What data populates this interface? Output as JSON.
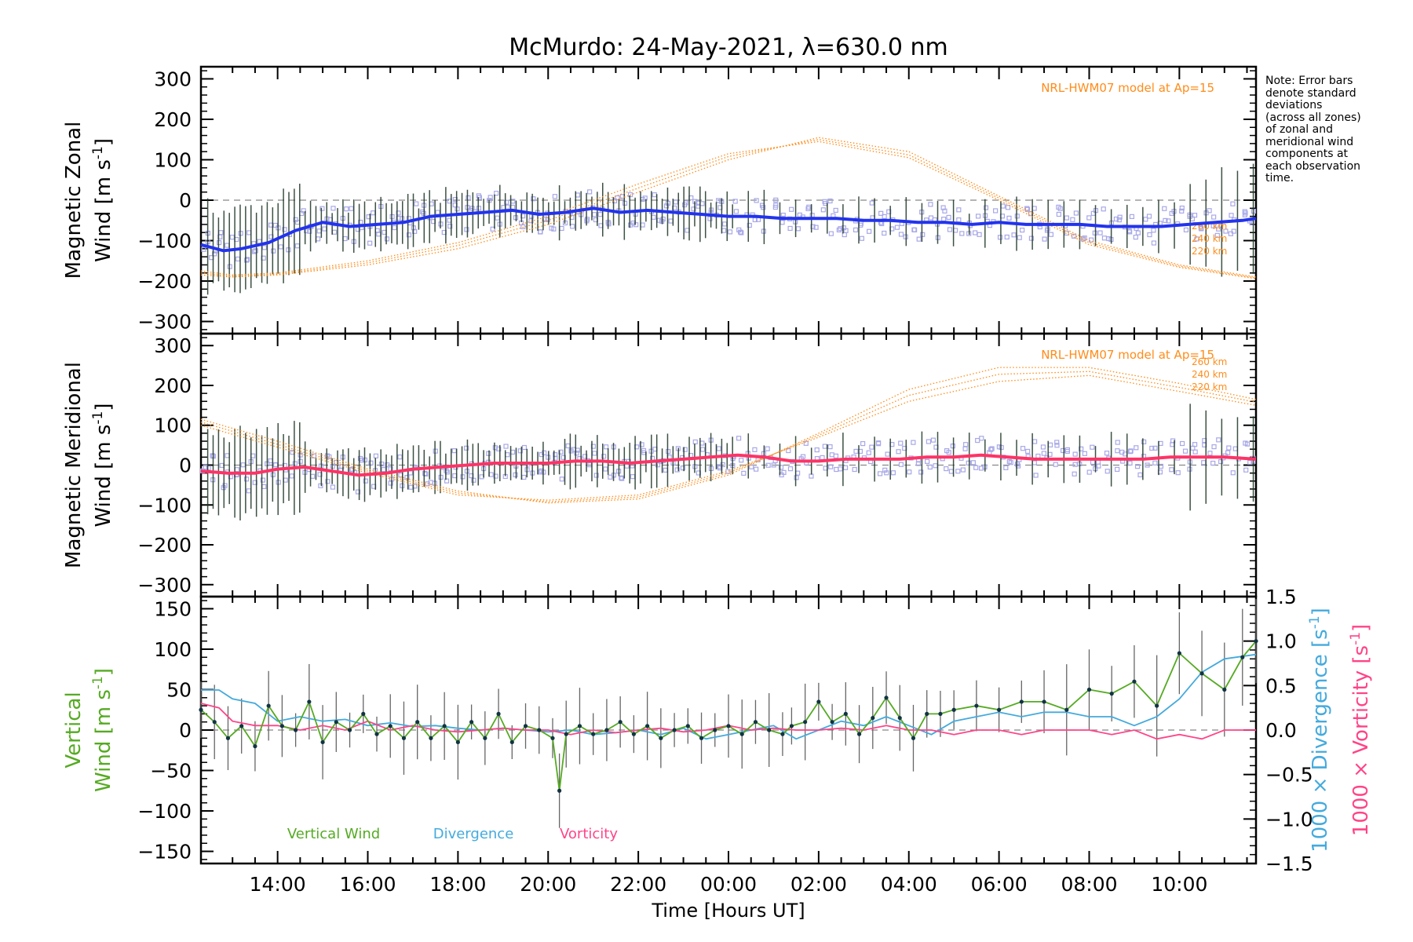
{
  "chart_data": {
    "type": "line",
    "title": "McMurdo: 24-May-2021, λ=630.0 nm",
    "xlabel": "Time [Hours UT]",
    "x_unit": "hours since 00:00 UT on 24-May-2021",
    "xlim": [
      12.3,
      35.7
    ],
    "x_ticks": [
      14,
      16,
      18,
      20,
      22,
      24,
      26,
      28,
      30,
      32,
      34
    ],
    "x_tick_labels": [
      "14:00",
      "16:00",
      "18:00",
      "20:00",
      "22:00",
      "00:00",
      "02:00",
      "04:00",
      "06:00",
      "08:00",
      "10:00"
    ],
    "note": [
      "Note: Error bars",
      "denote standard",
      "deviations",
      "(across all zones)",
      "of zonal and",
      "meridional wind",
      "components at",
      "each observation",
      "time."
    ],
    "colors": {
      "model": "#ff8c1a",
      "zonal": "#2233ee",
      "meridional": "#ff3366",
      "vertical": "#55aa22",
      "divergence": "#44aadd",
      "vorticity": "#ff4488",
      "zone_scatter": "#a8a8e8",
      "error_bar": "#1a3322"
    },
    "panels": [
      {
        "id": "zonal",
        "ylabel_line1": "Magnetic Zonal",
        "ylabel_line2": "Wind [m s",
        "ylabel_sup": "-1",
        "ylabel_end": "]",
        "ylim": [
          -330,
          330
        ],
        "y_ticks": [
          -300,
          -200,
          -100,
          0,
          100,
          200,
          300
        ],
        "y_tick_labels": [
          "−300",
          "−200",
          "−100",
          "0",
          "100",
          "200",
          "300"
        ],
        "model_label": "NRL-HWM07 model at Ap=15",
        "model_altitudes": [
          "260 km",
          "240 km",
          "220 km"
        ],
        "model_series": [
          {
            "name": "260 km",
            "x": [
              12.3,
              13,
              14,
              16,
              18,
              20,
              22,
              24,
              26,
              28,
              30,
              32,
              34,
              35.7
            ],
            "values": [
              -185,
              -190,
              -185,
              -160,
              -120,
              -60,
              20,
              100,
              155,
              120,
              10,
              -100,
              -160,
              -190
            ]
          },
          {
            "name": "240 km",
            "x": [
              12.3,
              13,
              14,
              16,
              18,
              20,
              22,
              24,
              26,
              28,
              30,
              32,
              34,
              35.7
            ],
            "values": [
              -180,
              -188,
              -183,
              -155,
              -112,
              -50,
              30,
              108,
              150,
              112,
              5,
              -105,
              -163,
              -192
            ]
          },
          {
            "name": "220 km",
            "x": [
              12.3,
              13,
              14,
              16,
              18,
              20,
              22,
              24,
              26,
              28,
              30,
              32,
              34,
              35.7
            ],
            "values": [
              -175,
              -185,
              -180,
              -150,
              -105,
              -40,
              40,
              115,
              145,
              105,
              0,
              -110,
              -166,
              -194
            ]
          }
        ],
        "series": [
          {
            "name": "Magnetic Zonal Wind",
            "x": [
              12.3,
              12.8,
              13.2,
              13.8,
              14.4,
              15,
              15.6,
              16.2,
              16.8,
              17.4,
              18,
              18.6,
              19.2,
              19.8,
              20.4,
              21,
              21.6,
              22.2,
              22.8,
              23.4,
              24,
              24.6,
              25.2,
              25.8,
              26.4,
              27,
              27.6,
              28.2,
              28.8,
              29.4,
              30,
              30.6,
              31.2,
              31.8,
              32.4,
              33,
              33.6,
              34.2,
              34.8,
              35.4,
              35.7
            ],
            "values": [
              -110,
              -125,
              -120,
              -105,
              -75,
              -55,
              -65,
              -60,
              -55,
              -40,
              -35,
              -30,
              -25,
              -35,
              -30,
              -20,
              -30,
              -25,
              -30,
              -35,
              -40,
              -40,
              -45,
              -45,
              -45,
              -50,
              -50,
              -55,
              -55,
              -60,
              -55,
              -60,
              -60,
              -60,
              -65,
              -65,
              -65,
              -60,
              -55,
              -50,
              -45
            ]
          }
        ]
      },
      {
        "id": "meridional",
        "ylabel_line1": "Magnetic Meridional",
        "ylabel_line2": "Wind [m s",
        "ylabel_sup": "-1",
        "ylabel_end": "]",
        "ylim": [
          -330,
          330
        ],
        "y_ticks": [
          -300,
          -200,
          -100,
          0,
          100,
          200,
          300
        ],
        "y_tick_labels": [
          "−300",
          "−200",
          "−100",
          "0",
          "100",
          "200",
          "300"
        ],
        "model_label": "NRL-HWM07 model at Ap=15",
        "model_altitudes": [
          "260 km",
          "240 km",
          "220 km"
        ],
        "model_series": [
          {
            "name": "260 km",
            "x": [
              12.3,
              14,
              16,
              18,
              20,
              22,
              24,
              26,
              28,
              30,
              32,
              34,
              35.7
            ],
            "values": [
              115,
              60,
              -10,
              -65,
              -95,
              -85,
              -25,
              80,
              190,
              245,
              245,
              205,
              165
            ]
          },
          {
            "name": "240 km",
            "x": [
              12.3,
              14,
              16,
              18,
              20,
              22,
              24,
              26,
              28,
              30,
              32,
              34,
              35.7
            ],
            "values": [
              108,
              52,
              -15,
              -70,
              -92,
              -80,
              -20,
              75,
              175,
              228,
              235,
              195,
              158
            ]
          },
          {
            "name": "220 km",
            "x": [
              12.3,
              14,
              16,
              18,
              20,
              22,
              24,
              26,
              28,
              30,
              32,
              34,
              35.7
            ],
            "values": [
              100,
              45,
              -20,
              -75,
              -88,
              -75,
              -15,
              70,
              160,
              210,
              225,
              185,
              150
            ]
          }
        ],
        "series": [
          {
            "name": "Magnetic Meridional Wind",
            "x": [
              12.3,
              12.9,
              13.5,
              14,
              14.6,
              15.2,
              15.8,
              16.4,
              17,
              17.6,
              18.2,
              18.8,
              19.4,
              20,
              20.6,
              21.2,
              21.8,
              22.4,
              23,
              23.6,
              24.2,
              24.8,
              25.4,
              26,
              26.6,
              27.2,
              27.8,
              28.4,
              29,
              29.6,
              30.2,
              30.8,
              31.4,
              32,
              32.6,
              33.2,
              33.8,
              34.4,
              35,
              35.7
            ],
            "values": [
              -15,
              -20,
              -20,
              -10,
              -5,
              -15,
              -25,
              -20,
              -10,
              -5,
              0,
              5,
              5,
              5,
              10,
              10,
              5,
              10,
              15,
              20,
              25,
              20,
              10,
              10,
              15,
              15,
              15,
              20,
              20,
              25,
              20,
              15,
              15,
              15,
              15,
              15,
              20,
              20,
              20,
              15
            ]
          }
        ]
      },
      {
        "id": "vertical",
        "ylabel_line1": "Vertical",
        "ylabel_line2": "Wind [m s",
        "ylabel_sup": "-1",
        "ylabel_end": "]",
        "ylim": [
          -165,
          165
        ],
        "y_ticks": [
          -150,
          -100,
          -50,
          0,
          50,
          100,
          150
        ],
        "y_tick_labels": [
          "−150",
          "−100",
          "−50",
          "0",
          "50",
          "100",
          "150"
        ],
        "right_axis": {
          "ylim": [
            -1.5,
            1.5
          ],
          "y_ticks": [
            -1.5,
            -1.0,
            -0.5,
            0.0,
            0.5,
            1.0,
            1.5
          ],
          "y_tick_labels": [
            "−1.5",
            "−1.0",
            "−0.5",
            "0.0",
            "0.5",
            "1.0",
            "1.5"
          ],
          "label_divergence": "1000 × Divergence [s",
          "label_vorticity": "1000 × Vorticity [s",
          "label_sup": "-1",
          "label_end": "]"
        },
        "legend": [
          "Vertical Wind",
          "Divergence",
          "Vorticity"
        ],
        "series": [
          {
            "name": "Vertical Wind",
            "axis": "left",
            "x": [
              12.3,
              12.6,
              12.9,
              13.2,
              13.5,
              13.8,
              14.1,
              14.4,
              14.7,
              15,
              15.3,
              15.6,
              15.9,
              16.2,
              16.5,
              16.8,
              17.1,
              17.4,
              17.7,
              18,
              18.3,
              18.6,
              18.9,
              19.2,
              19.5,
              19.8,
              20.1,
              20.25,
              20.4,
              20.7,
              21,
              21.3,
              21.6,
              21.9,
              22.2,
              22.5,
              22.8,
              23.1,
              23.4,
              23.7,
              24,
              24.3,
              24.6,
              24.9,
              25.2,
              25.4,
              25.7,
              26,
              26.3,
              26.6,
              26.9,
              27.2,
              27.5,
              27.8,
              28.1,
              28.4,
              28.7,
              29,
              29.5,
              30,
              30.5,
              31,
              31.5,
              32,
              32.5,
              33,
              33.5,
              34,
              34.5,
              35,
              35.4,
              35.7
            ],
            "values": [
              25,
              10,
              -10,
              5,
              -20,
              30,
              5,
              0,
              35,
              -15,
              10,
              0,
              20,
              -5,
              5,
              -10,
              10,
              -10,
              5,
              -15,
              10,
              -10,
              20,
              -15,
              5,
              0,
              -10,
              -75,
              -5,
              5,
              -5,
              0,
              10,
              -5,
              5,
              -10,
              0,
              5,
              -10,
              0,
              5,
              -5,
              10,
              0,
              -5,
              5,
              10,
              35,
              10,
              20,
              -5,
              15,
              40,
              15,
              -10,
              20,
              20,
              25,
              30,
              25,
              35,
              35,
              25,
              50,
              45,
              60,
              30,
              95,
              70,
              50,
              90,
              110
            ]
          },
          {
            "name": "Divergence",
            "axis": "right",
            "x": [
              12.3,
              12.7,
              13,
              13.5,
              14,
              14.5,
              15,
              15.5,
              16,
              16.5,
              17,
              17.5,
              18,
              18.5,
              19,
              19.5,
              20,
              20.5,
              21,
              21.5,
              22,
              22.5,
              23,
              23.5,
              24,
              24.5,
              25,
              25.5,
              26,
              26.5,
              27,
              27.5,
              28,
              28.5,
              29,
              29.5,
              30,
              30.5,
              31,
              31.5,
              32,
              32.5,
              33,
              33.5,
              34,
              34.5,
              35,
              35.7
            ],
            "values": [
              0.45,
              0.45,
              0.35,
              0.3,
              0.1,
              0.15,
              0.1,
              0.12,
              0.05,
              0.08,
              0.04,
              0.05,
              0.02,
              0.0,
              0.02,
              0.0,
              -0.02,
              0.0,
              -0.05,
              -0.03,
              0.0,
              -0.05,
              0.02,
              -0.1,
              -0.05,
              0.0,
              0.05,
              -0.1,
              0.0,
              0.1,
              0.05,
              0.15,
              0.05,
              -0.05,
              0.1,
              0.15,
              0.2,
              0.15,
              0.2,
              0.2,
              0.15,
              0.15,
              0.05,
              0.15,
              0.35,
              0.65,
              0.8,
              0.85
            ]
          },
          {
            "name": "Vorticity",
            "axis": "right",
            "x": [
              12.3,
              12.7,
              13,
              13.5,
              14,
              14.5,
              15,
              15.5,
              16,
              16.5,
              17,
              17.5,
              18,
              18.5,
              19,
              19.5,
              20,
              20.5,
              21,
              21.5,
              22,
              22.5,
              23,
              23.5,
              24,
              24.5,
              25,
              25.5,
              26,
              26.5,
              27,
              27.5,
              28,
              28.5,
              29,
              29.5,
              30,
              30.5,
              31,
              31.5,
              32,
              32.5,
              33,
              33.5,
              34,
              34.5,
              35,
              35.7
            ],
            "values": [
              0.3,
              0.25,
              0.1,
              0.05,
              0.05,
              0.0,
              0.05,
              0.0,
              0.1,
              0.0,
              0.05,
              0.0,
              -0.02,
              0.0,
              0.02,
              0.0,
              0.0,
              -0.05,
              0.0,
              -0.03,
              0.0,
              0.02,
              -0.02,
              0.0,
              0.05,
              0.0,
              0.02,
              0.0,
              0.0,
              0.02,
              0.0,
              0.05,
              0.0,
              0.0,
              -0.05,
              0.0,
              0.0,
              -0.05,
              0.0,
              0.0,
              0.0,
              -0.05,
              0.0,
              -0.1,
              -0.05,
              -0.1,
              0.0,
              0.0
            ]
          }
        ]
      }
    ]
  }
}
